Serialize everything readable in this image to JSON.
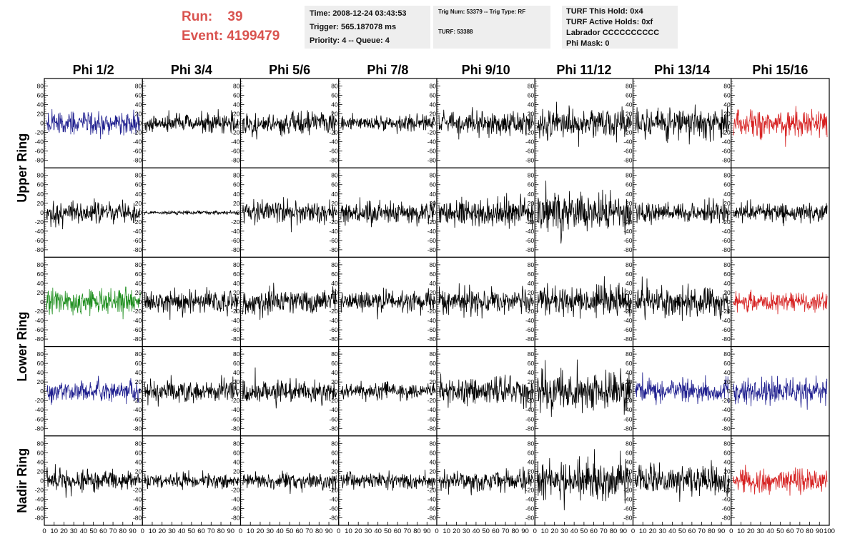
{
  "header": {
    "run_label": "Run:    39",
    "event_label": "Event: 4199479",
    "time": "Time: 2008-12-24 03:43:53",
    "trigger": "Trigger: 565.187078 ms",
    "priority": "Priority: 4 -- Queue: 4",
    "trig_num": "Trig Num: 53379 -- Trig Type: RF",
    "turf": "TURF: 53388",
    "turf_hold": "TURF This Hold: 0x4",
    "turf_active": "TURF Active Holds: 0xf",
    "labrador": "Labrador CCCCCCCCCC",
    "phi_mask": "Phi Mask: 0"
  },
  "columns": [
    "Phi 1/2",
    "Phi 3/4",
    "Phi 5/6",
    "Phi 7/8",
    "Phi 9/10",
    "Phi 11/12",
    "Phi 13/14",
    "Phi 15/16"
  ],
  "rows": [
    "Upper Ring",
    "Lower Ring",
    "Nadir Ring"
  ],
  "colors": {
    "black": "#000000",
    "blue": "#1f1f8f",
    "green": "#1f8f1f",
    "red": "#d62020",
    "header_red": "#d9534f",
    "box_bg": "#eeeeee"
  },
  "chart_data": {
    "type": "line",
    "title": "",
    "xlabel": "",
    "ylabel": "",
    "xlim": [
      0,
      100
    ],
    "ylim": [
      -90,
      90
    ],
    "y_ticks": [
      -80,
      -60,
      -40,
      -20,
      0,
      20,
      40,
      60,
      80
    ],
    "x_tick_labels": [
      "0",
      "10",
      "20",
      "30",
      "40",
      "50",
      "60",
      "70",
      "80",
      "90",
      "100"
    ],
    "panel_colors": [
      [
        "blue",
        "black",
        "black",
        "black",
        "black",
        "black",
        "black",
        "red"
      ],
      [
        "black",
        "black",
        "black",
        "black",
        "black",
        "black",
        "black",
        "black"
      ],
      [
        "green",
        "black",
        "black",
        "black",
        "black",
        "black",
        "black",
        "red"
      ],
      [
        "blue",
        "black",
        "black",
        "black",
        "black",
        "black",
        "blue",
        "blue"
      ],
      [
        "black",
        "black",
        "black",
        "black",
        "black",
        "black",
        "black",
        "red"
      ]
    ],
    "panel_amplitudes": [
      [
        12,
        10,
        12,
        8,
        13,
        17,
        16,
        14
      ],
      [
        11,
        2,
        12,
        12,
        15,
        20,
        11,
        10
      ],
      [
        12,
        12,
        14,
        12,
        13,
        16,
        16,
        10
      ],
      [
        11,
        12,
        11,
        8,
        15,
        20,
        12,
        14
      ],
      [
        11,
        8,
        9,
        9,
        11,
        20,
        15,
        13
      ]
    ],
    "samples_per_trace": 256,
    "noise_seed": 4199479
  }
}
